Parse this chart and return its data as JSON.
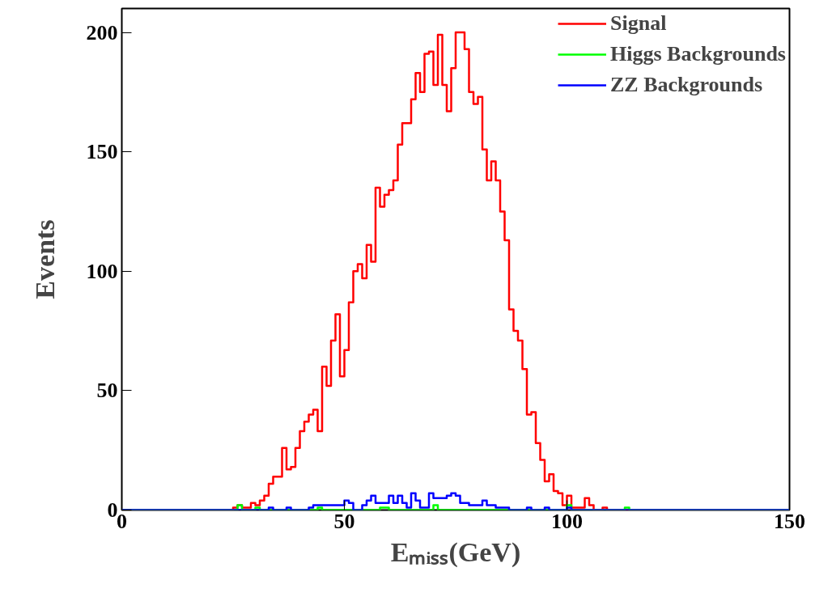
{
  "chart_data": {
    "type": "histogram",
    "xlabel": "Eₘᵢₛₛ(GeV)",
    "ylabel": "Events",
    "bins": [
      0,
      1,
      2,
      3,
      4,
      5,
      6,
      7,
      8,
      9,
      10,
      11,
      12,
      13,
      14,
      15,
      16,
      17,
      18,
      19,
      20,
      21,
      22,
      23,
      24,
      25,
      26,
      27,
      28,
      29,
      30,
      31,
      32,
      33,
      34,
      35,
      36,
      37,
      38,
      39,
      40,
      41,
      42,
      43,
      44,
      45,
      46,
      47,
      48,
      49,
      50,
      51,
      52,
      53,
      54,
      55,
      56,
      57,
      58,
      59,
      60,
      61,
      62,
      63,
      64,
      65,
      66,
      67,
      68,
      69,
      70,
      71,
      72,
      73,
      74,
      75,
      76,
      77,
      78,
      79,
      80,
      81,
      82,
      83,
      84,
      85,
      86,
      87,
      88,
      89,
      90,
      91,
      92,
      93,
      94,
      95,
      96,
      97,
      98,
      99,
      100,
      101,
      102,
      103,
      104,
      105,
      106,
      107,
      108,
      109,
      110,
      111,
      112,
      113,
      114,
      115,
      116,
      117,
      118,
      119,
      120,
      121,
      122,
      123,
      124,
      125,
      126,
      127,
      128,
      129,
      130,
      131,
      132,
      133,
      134,
      135,
      136,
      137,
      138,
      139,
      140,
      141,
      142,
      143,
      144,
      145,
      146,
      147,
      148,
      149,
      150
    ],
    "series": [
      {
        "name": "Signal",
        "color": "#ff0000",
        "values": [
          0,
          0,
          0,
          0,
          0,
          0,
          0,
          0,
          0,
          0,
          0,
          0,
          0,
          0,
          0,
          0,
          0,
          0,
          0,
          0,
          0,
          0,
          0,
          0,
          0,
          1,
          2,
          1,
          1,
          3,
          2,
          4,
          6,
          11,
          14,
          14,
          26,
          17,
          18,
          26,
          33,
          37,
          40,
          42,
          33,
          60,
          52,
          71,
          82,
          56,
          67,
          87,
          100,
          103,
          97,
          111,
          104,
          135,
          127,
          132,
          134,
          138,
          153,
          162,
          162,
          172,
          183,
          175,
          191,
          192,
          178,
          199,
          178,
          167,
          185,
          200,
          200,
          193,
          175,
          170,
          173,
          151,
          138,
          146,
          138,
          125,
          113,
          84,
          75,
          71,
          59,
          40,
          41,
          28,
          21,
          12,
          15,
          8,
          7,
          2,
          6,
          1,
          1,
          1,
          5,
          2,
          0,
          0,
          1,
          0,
          0,
          0,
          0,
          0,
          0,
          0,
          0,
          0,
          0,
          0,
          0,
          0,
          0,
          0,
          0,
          0,
          0,
          0,
          0,
          0,
          0,
          0,
          0,
          0,
          0,
          0,
          0,
          0,
          0,
          0,
          0,
          0,
          0,
          0,
          0,
          0,
          0,
          0,
          0,
          0
        ]
      },
      {
        "name": "Higgs Backgrounds",
        "color": "#00ff00",
        "values": [
          0,
          0,
          0,
          0,
          0,
          0,
          0,
          0,
          0,
          0,
          0,
          0,
          0,
          0,
          0,
          0,
          0,
          0,
          0,
          0,
          0,
          0,
          0,
          0,
          0,
          0,
          2,
          0,
          0,
          0,
          1,
          0,
          0,
          0,
          0,
          0,
          0,
          0,
          0,
          0,
          0,
          0,
          0,
          0,
          1,
          0,
          0,
          0,
          0,
          0,
          0,
          0,
          0,
          0,
          0,
          0,
          0,
          0,
          1,
          1,
          0,
          0,
          0,
          0,
          0,
          0,
          0,
          0,
          0,
          0,
          2,
          0,
          0,
          0,
          0,
          0,
          0,
          0,
          0,
          0,
          0,
          0,
          0,
          0,
          0,
          0,
          0,
          0,
          0,
          0,
          0,
          0,
          0,
          0,
          0,
          0,
          0,
          0,
          0,
          0,
          2,
          0,
          0,
          0,
          0,
          0,
          0,
          0,
          0,
          0,
          0,
          0,
          0,
          1,
          0,
          0,
          0,
          0,
          0,
          0,
          0,
          0,
          0,
          0,
          0,
          0,
          0,
          0,
          0,
          0,
          0,
          0,
          0,
          0,
          0,
          0,
          0,
          0,
          0,
          0,
          0,
          0,
          0,
          0,
          0,
          0,
          0,
          0,
          0,
          0
        ]
      },
      {
        "name": "ZZ Backgrounds",
        "color": "#0000ff",
        "values": [
          0,
          0,
          0,
          0,
          0,
          0,
          0,
          0,
          0,
          0,
          0,
          0,
          0,
          0,
          0,
          0,
          0,
          0,
          0,
          0,
          0,
          0,
          0,
          0,
          0,
          0,
          0,
          0,
          0,
          0,
          0,
          0,
          0,
          1,
          0,
          0,
          0,
          1,
          0,
          0,
          0,
          0,
          1,
          2,
          2,
          2,
          2,
          2,
          2,
          2,
          4,
          3,
          0,
          0,
          2,
          4,
          6,
          3,
          3,
          3,
          6,
          3,
          6,
          3,
          1,
          7,
          4,
          1,
          1,
          7,
          5,
          5,
          5,
          6,
          7,
          6,
          3,
          3,
          2,
          2,
          2,
          4,
          2,
          2,
          1,
          1,
          1,
          0,
          0,
          0,
          0,
          1,
          0,
          0,
          0,
          1,
          0,
          0,
          0,
          0,
          1,
          0,
          0,
          0,
          0,
          0,
          0,
          0,
          0,
          0,
          0,
          0,
          0,
          0,
          0,
          0,
          0,
          0,
          0,
          0,
          0,
          0,
          0,
          0,
          0,
          0,
          0,
          0,
          0,
          0,
          0,
          0,
          0,
          0,
          0,
          0,
          0,
          0,
          0,
          0,
          0,
          0,
          0,
          0,
          0,
          0,
          0,
          0,
          0,
          0
        ]
      }
    ],
    "xlim": [
      0,
      150
    ],
    "ylim": [
      0,
      210
    ],
    "xticks": [
      0,
      50,
      100,
      150
    ],
    "yticks": [
      0,
      50,
      100,
      150,
      200
    ],
    "legend": "top right",
    "grid": false
  }
}
